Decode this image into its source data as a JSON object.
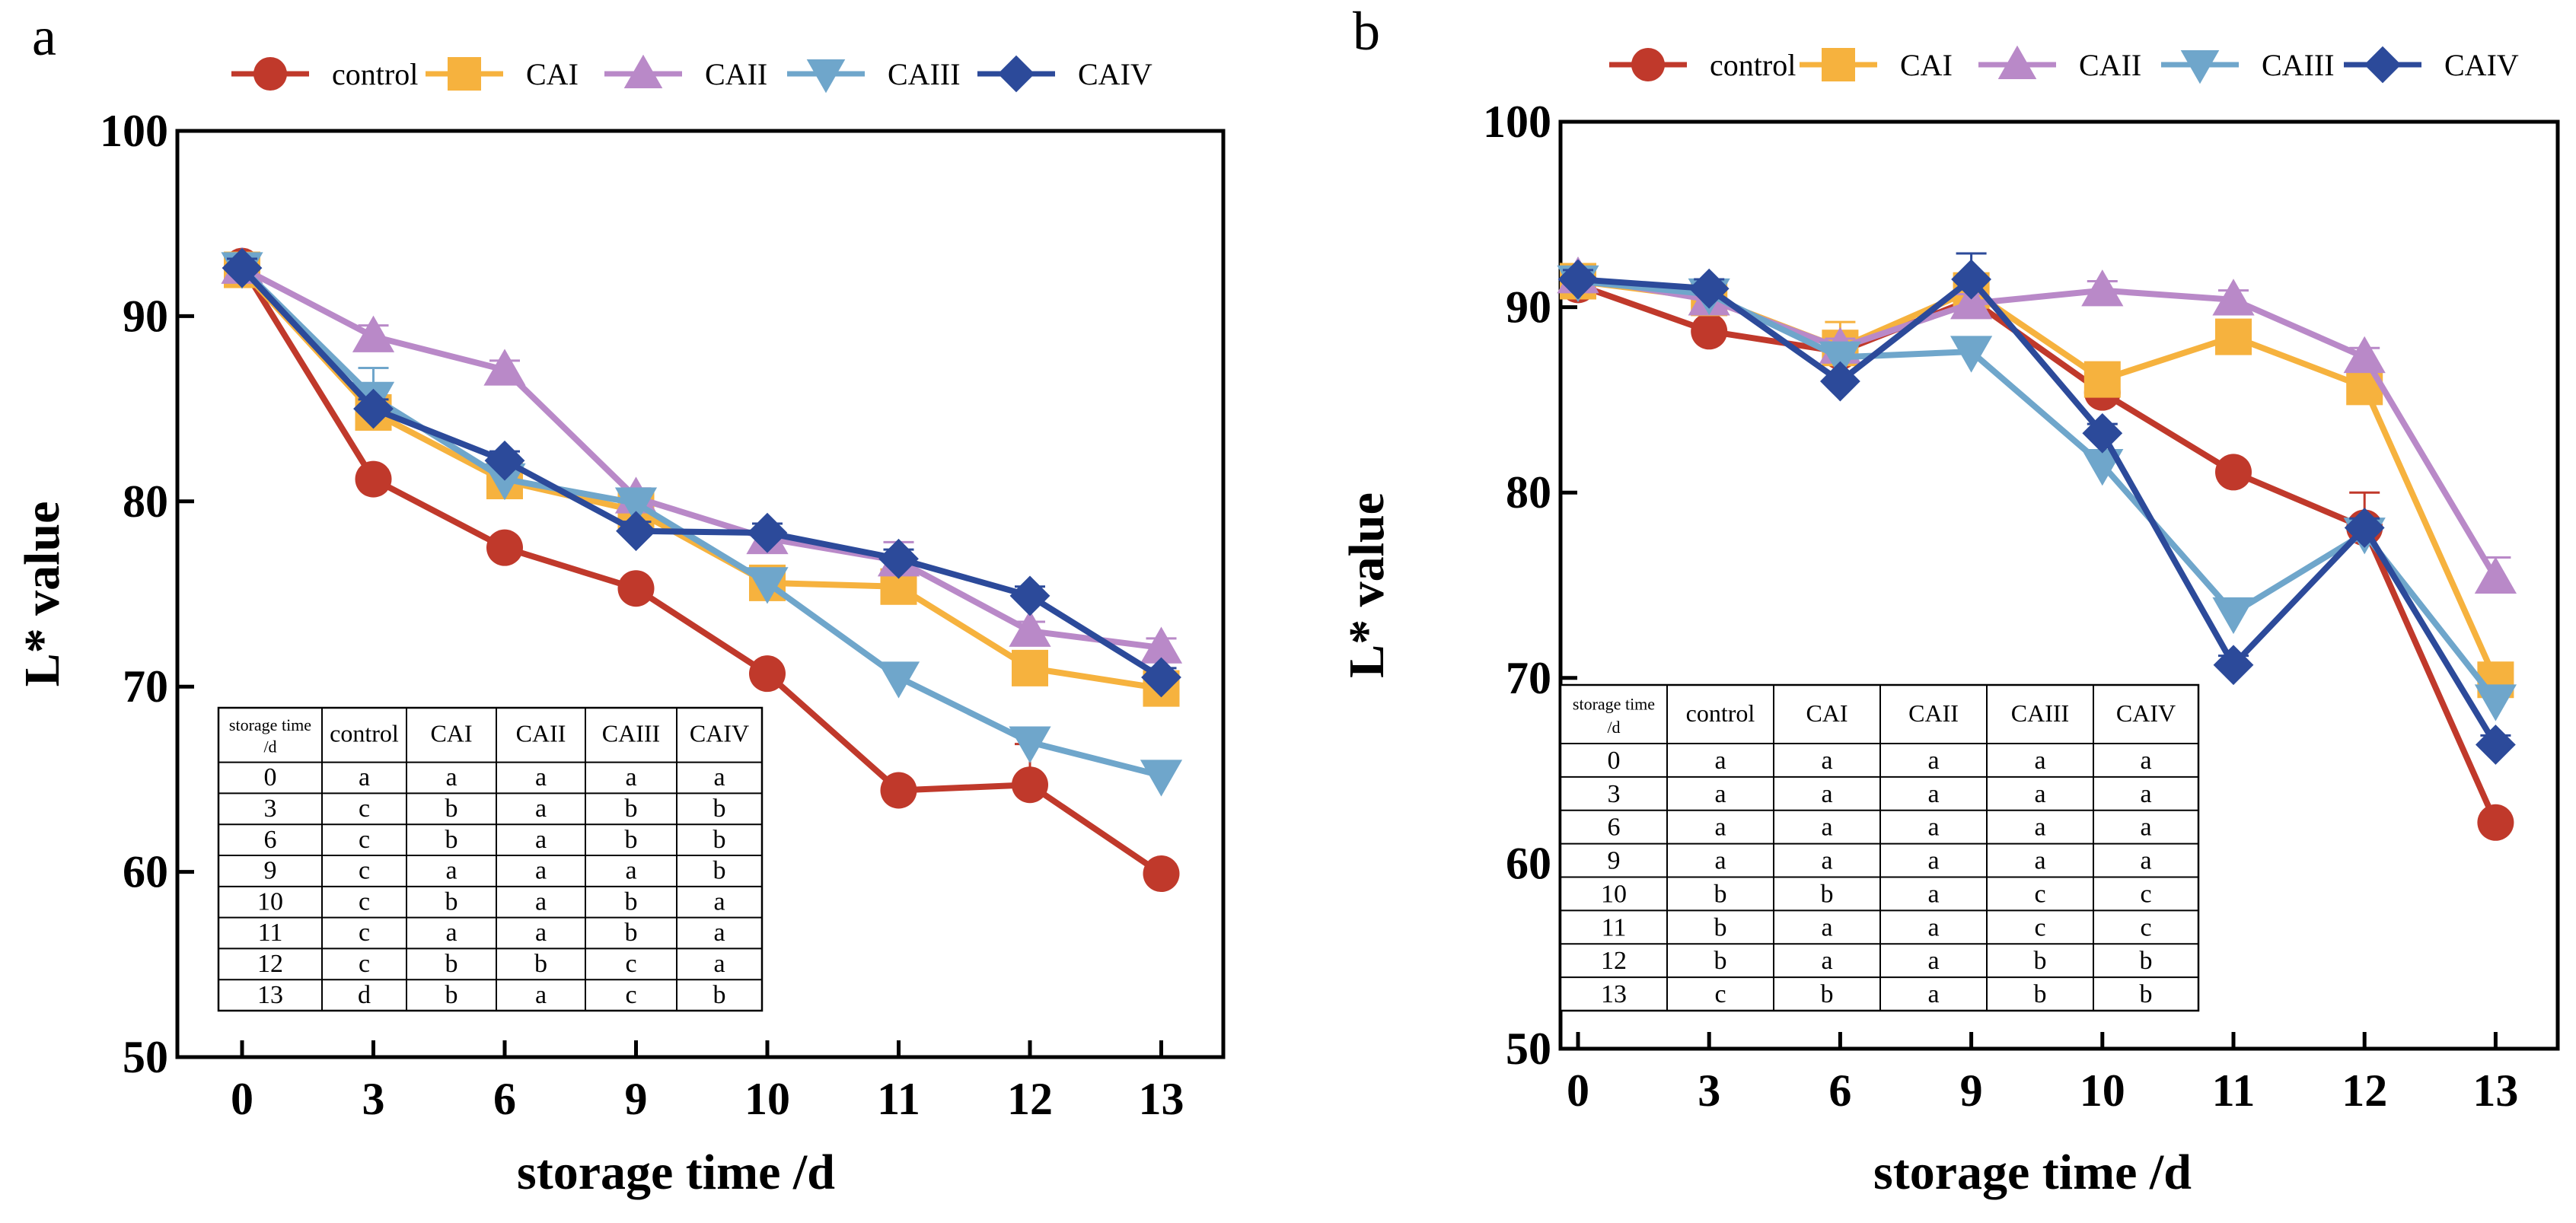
{
  "chart_data": [
    {
      "type": "line",
      "panel_label": "a",
      "title": "",
      "xlabel": "storage time /d",
      "ylabel": "L* value",
      "categories": [
        "0",
        "3",
        "6",
        "9",
        "10",
        "11",
        "12",
        "13"
      ],
      "ylim": [
        50,
        100
      ],
      "yticks": [
        "50",
        "60",
        "70",
        "80",
        "90",
        "100"
      ],
      "legend_position": "top",
      "series": [
        {
          "name": "control",
          "color": "#c0392b",
          "marker": "circle",
          "values": [
            92.7,
            81.2,
            77.5,
            75.3,
            70.7,
            64.4,
            64.7,
            59.9
          ],
          "errors": [
            0.5,
            0.5,
            0.5,
            0.5,
            0.5,
            0.5,
            2.2,
            0.5
          ]
        },
        {
          "name": "CAI",
          "color": "#f6b23e",
          "marker": "square",
          "values": [
            92.5,
            84.8,
            81.1,
            79.5,
            75.6,
            75.4,
            71.0,
            69.9
          ],
          "errors": [
            0.6,
            0.8,
            0.6,
            0.6,
            0.6,
            0.6,
            0.6,
            0.6
          ]
        },
        {
          "name": "CAII",
          "color": "#b989c8",
          "marker": "triangle-up",
          "values": [
            92.6,
            88.9,
            87.1,
            80.2,
            78.0,
            76.8,
            73.0,
            72.1
          ],
          "errors": [
            0.5,
            0.6,
            0.5,
            0.5,
            0.5,
            1.0,
            0.5,
            0.5
          ]
        },
        {
          "name": "CAIII",
          "color": "#6fa6cb",
          "marker": "triangle-down",
          "values": [
            92.6,
            85.6,
            81.2,
            79.9,
            75.6,
            70.5,
            67.0,
            65.2
          ],
          "errors": [
            0.5,
            1.6,
            0.5,
            0.5,
            0.5,
            0.5,
            0.5,
            0.5
          ]
        },
        {
          "name": "CAIV",
          "color": "#2c4a9a",
          "marker": "diamond",
          "values": [
            92.6,
            85.0,
            82.2,
            78.4,
            78.3,
            76.9,
            74.9,
            70.5
          ],
          "errors": [
            0.5,
            0.5,
            0.5,
            0.5,
            0.5,
            0.5,
            0.5,
            0.5
          ]
        }
      ],
      "table": {
        "header_top": "storage time",
        "header_bottom": "/d",
        "columns": [
          "control",
          "CAI",
          "CAII",
          "CAIII",
          "CAIV"
        ],
        "rows": [
          [
            "0",
            "a",
            "a",
            "a",
            "a",
            "a"
          ],
          [
            "3",
            "c",
            "b",
            "a",
            "b",
            "b"
          ],
          [
            "6",
            "c",
            "b",
            "a",
            "b",
            "b"
          ],
          [
            "9",
            "c",
            "a",
            "a",
            "a",
            "b"
          ],
          [
            "10",
            "c",
            "b",
            "a",
            "b",
            "a"
          ],
          [
            "11",
            "c",
            "a",
            "a",
            "b",
            "a"
          ],
          [
            "12",
            "c",
            "b",
            "b",
            "c",
            "a"
          ],
          [
            "13",
            "d",
            "b",
            "a",
            "c",
            "b"
          ]
        ]
      }
    },
    {
      "type": "line",
      "panel_label": "b",
      "title": "",
      "xlabel": "storage time /d",
      "ylabel": "L* value",
      "categories": [
        "0",
        "3",
        "6",
        "9",
        "10",
        "11",
        "12",
        "13"
      ],
      "ylim": [
        50,
        100
      ],
      "yticks": [
        "50",
        "60",
        "70",
        "80",
        "90",
        "100"
      ],
      "legend_position": "top",
      "series": [
        {
          "name": "control",
          "color": "#c0392b",
          "marker": "circle",
          "values": [
            91.2,
            88.7,
            87.6,
            90.4,
            85.4,
            81.1,
            78.1,
            62.2
          ],
          "errors": [
            0.6,
            0.5,
            0.5,
            0.5,
            0.5,
            0.5,
            1.9,
            0.5
          ]
        },
        {
          "name": "CAI",
          "color": "#f6b23e",
          "marker": "square",
          "values": [
            91.4,
            90.5,
            87.8,
            90.9,
            86.1,
            88.4,
            85.7,
            69.9
          ],
          "errors": [
            0.6,
            0.8,
            1.4,
            0.6,
            0.6,
            0.9,
            0.6,
            0.6
          ]
        },
        {
          "name": "CAII",
          "color": "#b989c8",
          "marker": "triangle-up",
          "values": [
            91.6,
            90.4,
            87.8,
            90.2,
            90.9,
            90.4,
            87.3,
            75.4
          ],
          "errors": [
            0.5,
            0.5,
            0.5,
            0.5,
            0.5,
            0.5,
            0.5,
            1.1
          ]
        },
        {
          "name": "CAIII",
          "color": "#6fa6cb",
          "marker": "triangle-down",
          "values": [
            91.4,
            90.7,
            87.3,
            87.6,
            81.5,
            73.5,
            77.8,
            68.8
          ],
          "errors": [
            0.5,
            0.5,
            0.5,
            0.5,
            0.5,
            0.5,
            0.5,
            0.5
          ]
        },
        {
          "name": "CAIV",
          "color": "#2c4a9a",
          "marker": "diamond",
          "values": [
            91.5,
            91.0,
            86.0,
            91.5,
            83.2,
            70.7,
            78.1,
            66.4
          ],
          "errors": [
            0.5,
            0.5,
            0.5,
            1.4,
            0.5,
            0.5,
            0.5,
            0.5
          ]
        }
      ],
      "table": {
        "header_top": "storage time",
        "header_bottom": "/d",
        "columns": [
          "control",
          "CAI",
          "CAII",
          "CAIII",
          "CAIV"
        ],
        "rows": [
          [
            "0",
            "a",
            "a",
            "a",
            "a",
            "a"
          ],
          [
            "3",
            "a",
            "a",
            "a",
            "a",
            "a"
          ],
          [
            "6",
            "a",
            "a",
            "a",
            "a",
            "a"
          ],
          [
            "9",
            "a",
            "a",
            "a",
            "a",
            "a"
          ],
          [
            "10",
            "b",
            "b",
            "a",
            "c",
            "c"
          ],
          [
            "11",
            "b",
            "a",
            "a",
            "c",
            "c"
          ],
          [
            "12",
            "b",
            "a",
            "a",
            "b",
            "b"
          ],
          [
            "13",
            "c",
            "b",
            "a",
            "b",
            "b"
          ]
        ]
      }
    }
  ]
}
